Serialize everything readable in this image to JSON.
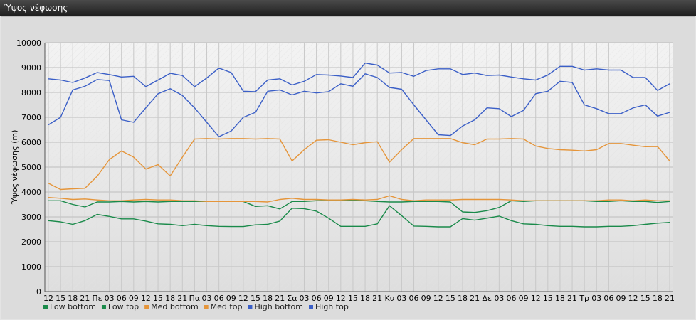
{
  "window": {
    "title": "Ύψος νέφωσης"
  },
  "chart_data": {
    "type": "line",
    "ylabel": "Ύψος νέφωσης (m)",
    "xlabel": "",
    "ylim": [
      0,
      10000
    ],
    "yticks": [
      0,
      1000,
      2000,
      3000,
      4000,
      5000,
      6000,
      7000,
      8000,
      9000,
      10000
    ],
    "grid": true,
    "legend_position": "bottom-left",
    "categories": [
      "12",
      "15",
      "18",
      "21",
      "Πε",
      "03",
      "06",
      "09",
      "12",
      "15",
      "18",
      "21",
      "Πα",
      "03",
      "06",
      "09",
      "12",
      "15",
      "18",
      "21",
      "Σα",
      "03",
      "06",
      "09",
      "12",
      "15",
      "18",
      "21",
      "Κυ",
      "03",
      "06",
      "09",
      "12",
      "15",
      "18",
      "21",
      "Δε",
      "03",
      "06",
      "09",
      "12",
      "15",
      "18",
      "21",
      "Τρ",
      "03",
      "06",
      "09",
      "12",
      "15",
      "18",
      "21"
    ],
    "series": [
      {
        "name": "Low bottom",
        "color": "#1a8a4a",
        "values": [
          2850,
          2800,
          2700,
          2850,
          3100,
          3020,
          2920,
          2920,
          2830,
          2720,
          2700,
          2650,
          2700,
          2650,
          2620,
          2610,
          2610,
          2680,
          2700,
          2830,
          3350,
          3330,
          3230,
          2950,
          2620,
          2620,
          2620,
          2720,
          3450,
          3050,
          2630,
          2620,
          2600,
          2600,
          2930,
          2870,
          2950,
          3030,
          2850,
          2720,
          2700,
          2650,
          2620,
          2620,
          2600,
          2600,
          2620,
          2620,
          2650,
          2700,
          2750,
          2780
        ]
      },
      {
        "name": "Low top",
        "color": "#1a8a4a",
        "values": [
          3650,
          3650,
          3500,
          3400,
          3600,
          3600,
          3620,
          3600,
          3620,
          3600,
          3620,
          3620,
          3620,
          3620,
          3620,
          3620,
          3620,
          3420,
          3450,
          3320,
          3620,
          3620,
          3650,
          3650,
          3650,
          3680,
          3650,
          3620,
          3600,
          3600,
          3620,
          3620,
          3620,
          3600,
          3200,
          3180,
          3250,
          3380,
          3650,
          3620,
          3650,
          3650,
          3650,
          3650,
          3650,
          3620,
          3620,
          3650,
          3620,
          3620,
          3580,
          3620
        ]
      },
      {
        "name": "Med bottom",
        "color": "#e5953a",
        "values": [
          3780,
          3750,
          3700,
          3720,
          3680,
          3650,
          3650,
          3680,
          3700,
          3680,
          3680,
          3650,
          3650,
          3620,
          3620,
          3620,
          3620,
          3620,
          3600,
          3700,
          3750,
          3700,
          3700,
          3680,
          3680,
          3700,
          3680,
          3700,
          3850,
          3700,
          3650,
          3680,
          3680,
          3680,
          3700,
          3700,
          3700,
          3700,
          3680,
          3650,
          3650,
          3650,
          3650,
          3650,
          3650,
          3650,
          3680,
          3680,
          3650,
          3680,
          3650,
          3650
        ]
      },
      {
        "name": "Med top",
        "color": "#e5953a",
        "values": [
          4350,
          4100,
          4130,
          4150,
          4630,
          5300,
          5650,
          5400,
          4920,
          5100,
          4650,
          5400,
          6130,
          6150,
          6130,
          6150,
          6150,
          6130,
          6150,
          6130,
          5250,
          5700,
          6080,
          6100,
          6000,
          5900,
          5980,
          6020,
          5200,
          5700,
          6150,
          6150,
          6150,
          6150,
          5980,
          5900,
          6130,
          6130,
          6150,
          6130,
          5850,
          5750,
          5700,
          5680,
          5650,
          5700,
          5950,
          5950,
          5880,
          5820,
          5830,
          5250
        ]
      },
      {
        "name": "High bottom",
        "color": "#3b5fc7",
        "values": [
          6700,
          7000,
          8100,
          8250,
          8520,
          8480,
          6900,
          6800,
          7380,
          7950,
          8150,
          7880,
          7380,
          6800,
          6220,
          6450,
          7000,
          7200,
          8050,
          8100,
          7900,
          8050,
          7980,
          8030,
          8350,
          8250,
          8750,
          8600,
          8200,
          8130,
          7500,
          6900,
          6300,
          6270,
          6650,
          6900,
          7380,
          7350,
          7030,
          7280,
          7950,
          8050,
          8450,
          8400,
          7500,
          7350,
          7150,
          7150,
          7380,
          7500,
          7050,
          7200
        ]
      },
      {
        "name": "High top",
        "color": "#3b5fc7",
        "values": [
          8550,
          8500,
          8400,
          8580,
          8800,
          8720,
          8620,
          8650,
          8230,
          8500,
          8770,
          8680,
          8230,
          8580,
          8980,
          8800,
          8050,
          8030,
          8500,
          8550,
          8300,
          8450,
          8720,
          8700,
          8660,
          8600,
          9180,
          9100,
          8780,
          8800,
          8650,
          8880,
          8950,
          8950,
          8720,
          8780,
          8680,
          8700,
          8620,
          8550,
          8500,
          8700,
          9050,
          9050,
          8900,
          8950,
          8900,
          8900,
          8600,
          8600,
          8080,
          8350
        ]
      }
    ]
  }
}
